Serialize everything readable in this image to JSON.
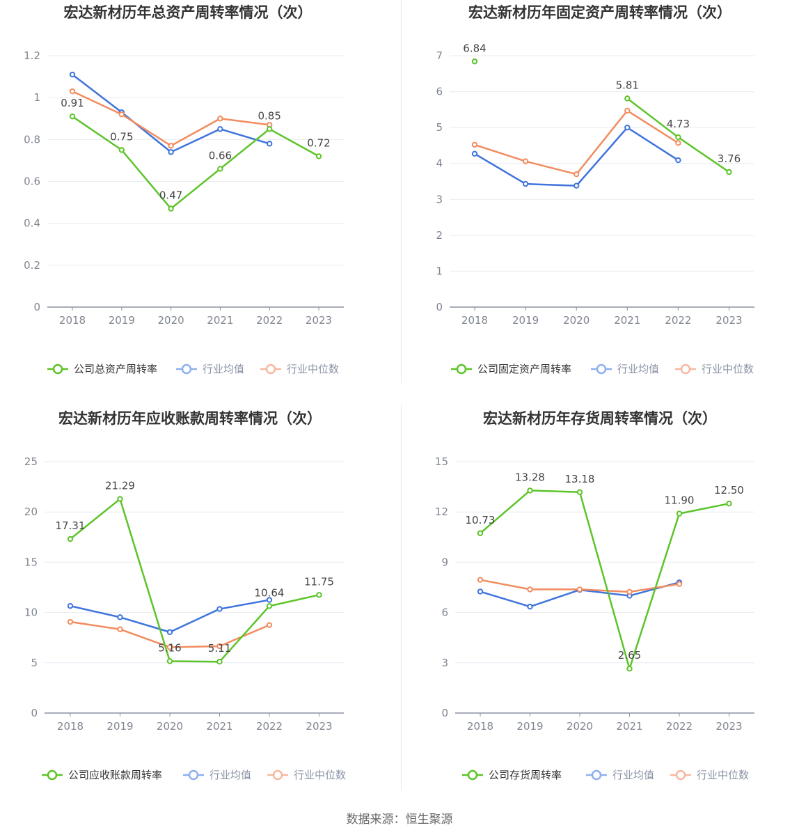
{
  "colors": {
    "company": "#5cc429",
    "industry_avg": "#3f74dc",
    "industry_median": "#f28c5f",
    "grid": "#e8ebf3",
    "axis": "#8a90a0",
    "legend_faded_avg": "#8fb0ee",
    "legend_faded_median": "#f7b8a0"
  },
  "source": "数据来源：恒生聚源",
  "chart_data": [
    {
      "type": "line",
      "title": "宏达新材历年总资产周转率情况（次）",
      "categories": [
        "2018",
        "2019",
        "2020",
        "2021",
        "2022",
        "2023"
      ],
      "yticks": [
        "0",
        "0.2",
        "0.4",
        "0.6",
        "0.8",
        "1",
        "1.2"
      ],
      "ylim": [
        0,
        1.2
      ],
      "series": [
        {
          "name": "公司总资产周转率",
          "key": "company",
          "values": [
            0.91,
            0.75,
            0.47,
            0.66,
            0.85,
            0.72
          ],
          "labels": [
            "0.91",
            "0.75",
            "0.47",
            "0.66",
            "0.85",
            "0.72"
          ]
        },
        {
          "name": "行业均值",
          "key": "industry_avg",
          "values": [
            1.11,
            0.93,
            0.74,
            0.85,
            0.78,
            null
          ]
        },
        {
          "name": "行业中位数",
          "key": "industry_median",
          "values": [
            1.03,
            0.92,
            0.77,
            0.9,
            0.87,
            null
          ]
        }
      ]
    },
    {
      "type": "line",
      "title": "宏达新材历年固定资产周转率情况（次）",
      "categories": [
        "2018",
        "2019",
        "2020",
        "2021",
        "2022",
        "2023"
      ],
      "yticks": [
        "0",
        "1",
        "2",
        "3",
        "4",
        "5",
        "6",
        "7"
      ],
      "ylim": [
        0,
        7
      ],
      "series": [
        {
          "name": "公司固定资产周转率",
          "key": "company",
          "values": [
            6.84,
            null,
            null,
            5.81,
            4.73,
            3.76
          ],
          "labels": [
            "6.84",
            null,
            null,
            "5.81",
            "4.73",
            "3.76"
          ]
        },
        {
          "name": "行业均值",
          "key": "industry_avg",
          "values": [
            4.27,
            3.43,
            3.38,
            5.0,
            4.09,
            null
          ]
        },
        {
          "name": "行业中位数",
          "key": "industry_median",
          "values": [
            4.52,
            4.06,
            3.7,
            5.47,
            4.57,
            null
          ]
        }
      ]
    },
    {
      "type": "line",
      "title": "宏达新材历年应收账款周转率情况（次）",
      "categories": [
        "2018",
        "2019",
        "2020",
        "2021",
        "2022",
        "2023"
      ],
      "yticks": [
        "0",
        "5",
        "10",
        "15",
        "20",
        "25"
      ],
      "ylim": [
        0,
        25
      ],
      "series": [
        {
          "name": "公司应收账款周转率",
          "key": "company",
          "values": [
            17.31,
            21.29,
            5.16,
            5.11,
            10.64,
            11.75
          ],
          "labels": [
            "17.31",
            "21.29",
            "5.16",
            "5.11",
            "10.64",
            "11.75"
          ]
        },
        {
          "name": "行业均值",
          "key": "industry_avg",
          "values": [
            10.65,
            9.53,
            8.05,
            10.35,
            11.25,
            null
          ]
        },
        {
          "name": "行业中位数",
          "key": "industry_median",
          "values": [
            9.07,
            8.33,
            6.55,
            6.65,
            8.75,
            null
          ]
        }
      ]
    },
    {
      "type": "line",
      "title": "宏达新材历年存货周转率情况（次）",
      "categories": [
        "2018",
        "2019",
        "2020",
        "2021",
        "2022",
        "2023"
      ],
      "yticks": [
        "0",
        "3",
        "6",
        "9",
        "12",
        "15"
      ],
      "ylim": [
        0,
        15
      ],
      "series": [
        {
          "name": "公司存货周转率",
          "key": "company",
          "values": [
            10.73,
            13.28,
            13.18,
            2.65,
            11.9,
            12.5
          ],
          "labels": [
            "10.73",
            "13.28",
            "13.18",
            "2.65",
            "11.90",
            "12.50"
          ]
        },
        {
          "name": "行业均值",
          "key": "industry_avg",
          "values": [
            7.25,
            6.35,
            7.35,
            7.0,
            7.8,
            null
          ]
        },
        {
          "name": "行业中位数",
          "key": "industry_median",
          "values": [
            7.95,
            7.38,
            7.38,
            7.23,
            7.7,
            null
          ]
        }
      ]
    }
  ]
}
